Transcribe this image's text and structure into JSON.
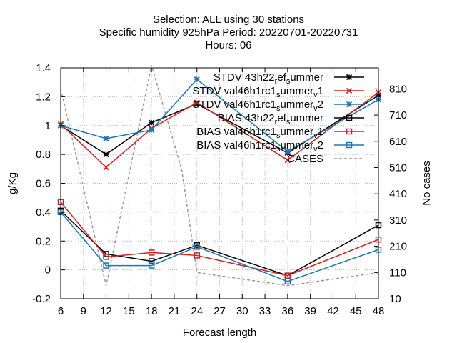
{
  "chart_data": {
    "type": "line",
    "title_lines": [
      "Selection: ALL using    30 stations",
      "Specific humidity 925hPa   Period: 20220701-20220731",
      "Hours:  06"
    ],
    "xlabel": "Forecast length",
    "ylabel": "g/Kg",
    "y2label": "No cases",
    "xlim": [
      6,
      48
    ],
    "ylim": [
      -0.2,
      1.4
    ],
    "y2lim": [
      10,
      890
    ],
    "xticks": [
      6,
      9,
      12,
      15,
      18,
      21,
      24,
      27,
      30,
      33,
      36,
      39,
      42,
      45,
      48
    ],
    "yticks": [
      -0.2,
      0,
      0.2,
      0.4,
      0.6,
      0.8,
      1,
      1.2,
      1.4
    ],
    "y2ticks": [
      10,
      110,
      210,
      310,
      410,
      510,
      610,
      710,
      810
    ],
    "grid": true,
    "legend_position": "top-right",
    "x": [
      6,
      12,
      18,
      24,
      36,
      48
    ],
    "series": [
      {
        "name": "STDV 43h22_ref_summer",
        "legend": [
          "STDV 43h22",
          "r",
          "ef",
          "s",
          "ummer"
        ],
        "color": "#000000",
        "marker": "star",
        "values": [
          1.0,
          0.8,
          1.02,
          1.15,
          0.81,
          1.21
        ]
      },
      {
        "name": "STDV val46h1rc1_summer_v1",
        "legend": [
          "STDV val46h1rc1",
          "s",
          "ummer",
          "v",
          "1"
        ],
        "color": "#cc2222",
        "marker": "x",
        "values": [
          1.01,
          0.71,
          0.98,
          1.16,
          0.76,
          1.23
        ]
      },
      {
        "name": "STDV val46h1rc1_summer_v2",
        "legend": [
          "STDV val46h1rc1",
          "s",
          "ummer",
          "v",
          "2"
        ],
        "color": "#1f77b4",
        "marker": "star",
        "values": [
          1.0,
          0.91,
          0.97,
          1.32,
          0.82,
          1.18
        ]
      },
      {
        "name": "BIAS 43h22_ref_summer",
        "legend": [
          "BIAS 43h22",
          "r",
          "ef",
          "s",
          "ummer"
        ],
        "color": "#000000",
        "marker": "square",
        "values": [
          0.41,
          0.11,
          0.06,
          0.17,
          -0.04,
          0.31
        ]
      },
      {
        "name": "BIAS val46h1rc1_summer_v1",
        "legend": [
          "BIAS val46h1rc1",
          "s",
          "ummer",
          "v",
          "1"
        ],
        "color": "#cc2222",
        "marker": "square",
        "values": [
          0.47,
          0.09,
          0.12,
          0.1,
          -0.04,
          0.21
        ]
      },
      {
        "name": "BIAS val46h1rc1_summer_v2",
        "legend": [
          "BIAS val46h1rc1",
          "s",
          "ummer",
          "v",
          "2"
        ],
        "color": "#1f77b4",
        "marker": "square",
        "values": [
          0.4,
          0.03,
          0.03,
          0.16,
          -0.08,
          0.14
        ]
      }
    ],
    "cases": {
      "name": "CASES",
      "legend": [
        "CASES"
      ],
      "color": "#999999",
      "x": [
        6,
        12,
        18,
        22,
        24,
        36,
        48
      ],
      "values": [
        810,
        60,
        900,
        500,
        110,
        60,
        110
      ]
    }
  }
}
